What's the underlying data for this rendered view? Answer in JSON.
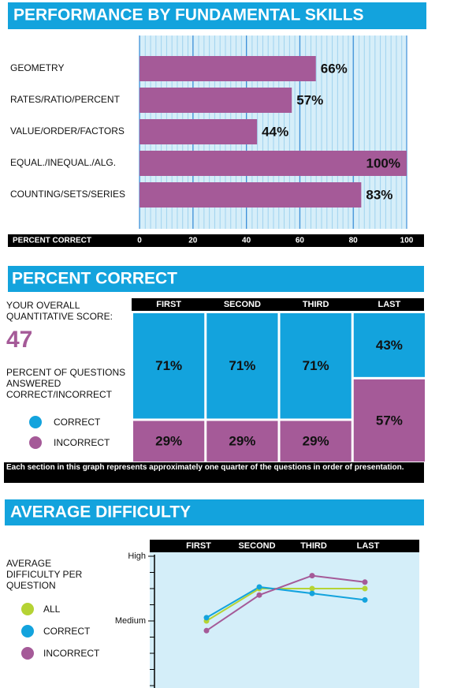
{
  "chart_data": [
    {
      "type": "bar",
      "title": "PERFORMANCE BY FUNDAMENTAL SKILLS",
      "categories": [
        "GEOMETRY",
        "RATES/RATIO/PERCENT",
        "VALUE/ORDER/FACTORS",
        "EQUAL./INEQUAL./ALG.",
        "COUNTING/SETS/SERIES"
      ],
      "values": [
        66,
        57,
        44,
        100,
        83
      ],
      "value_labels": [
        "66%",
        "57%",
        "44%",
        "100%",
        "83%"
      ],
      "color": "#a55a98",
      "xlabel": "PERCENT CORRECT",
      "xlim": [
        0,
        100
      ],
      "xticks": [
        0,
        20,
        40,
        60,
        80,
        100
      ],
      "grid": true
    },
    {
      "type": "mosaic",
      "title": "PERCENT CORRECT",
      "score_label": "YOUR OVERALL QUANTITATIVE SCORE:",
      "score": 47,
      "legend_title": "PERCENT OF QUESTIONS ANSWERED CORRECT/INCORRECT",
      "categories": [
        "FIRST",
        "SECOND",
        "THIRD",
        "LAST"
      ],
      "series": [
        {
          "name": "CORRECT",
          "color": "#13a3dd",
          "values": [
            71,
            71,
            71,
            43
          ],
          "value_labels": [
            "71%",
            "71%",
            "71%",
            "43%"
          ]
        },
        {
          "name": "INCORRECT",
          "color": "#a55a98",
          "values": [
            29,
            29,
            29,
            57
          ],
          "value_labels": [
            "29%",
            "29%",
            "29%",
            "57%"
          ]
        }
      ],
      "ylim": [
        0,
        100
      ],
      "note": "Each section in this graph represents approximately one quarter of the questions in order of presentation."
    },
    {
      "type": "line",
      "title": "AVERAGE DIFFICULTY",
      "legend_title": "AVERAGE DIFFICULTY PER QUESTION",
      "categories": [
        "FIRST",
        "SECOND",
        "THIRD",
        "LAST"
      ],
      "series": [
        {
          "name": "ALL",
          "color": "#b5d334",
          "values": [
            5.0,
            7.0,
            7.0,
            7.0
          ]
        },
        {
          "name": "CORRECT",
          "color": "#13a3dd",
          "values": [
            5.2,
            7.1,
            6.7,
            6.3
          ]
        },
        {
          "name": "INCORRECT",
          "color": "#a55a98",
          "values": [
            4.4,
            6.6,
            7.8,
            7.4
          ]
        }
      ],
      "ylim": [
        1,
        9
      ],
      "yticks": [
        {
          "value": 5,
          "label": "Medium"
        },
        {
          "value": 9,
          "label": "High"
        }
      ],
      "minor_yticks": [
        1,
        2,
        3,
        4,
        5,
        6,
        7,
        8,
        9
      ]
    }
  ]
}
